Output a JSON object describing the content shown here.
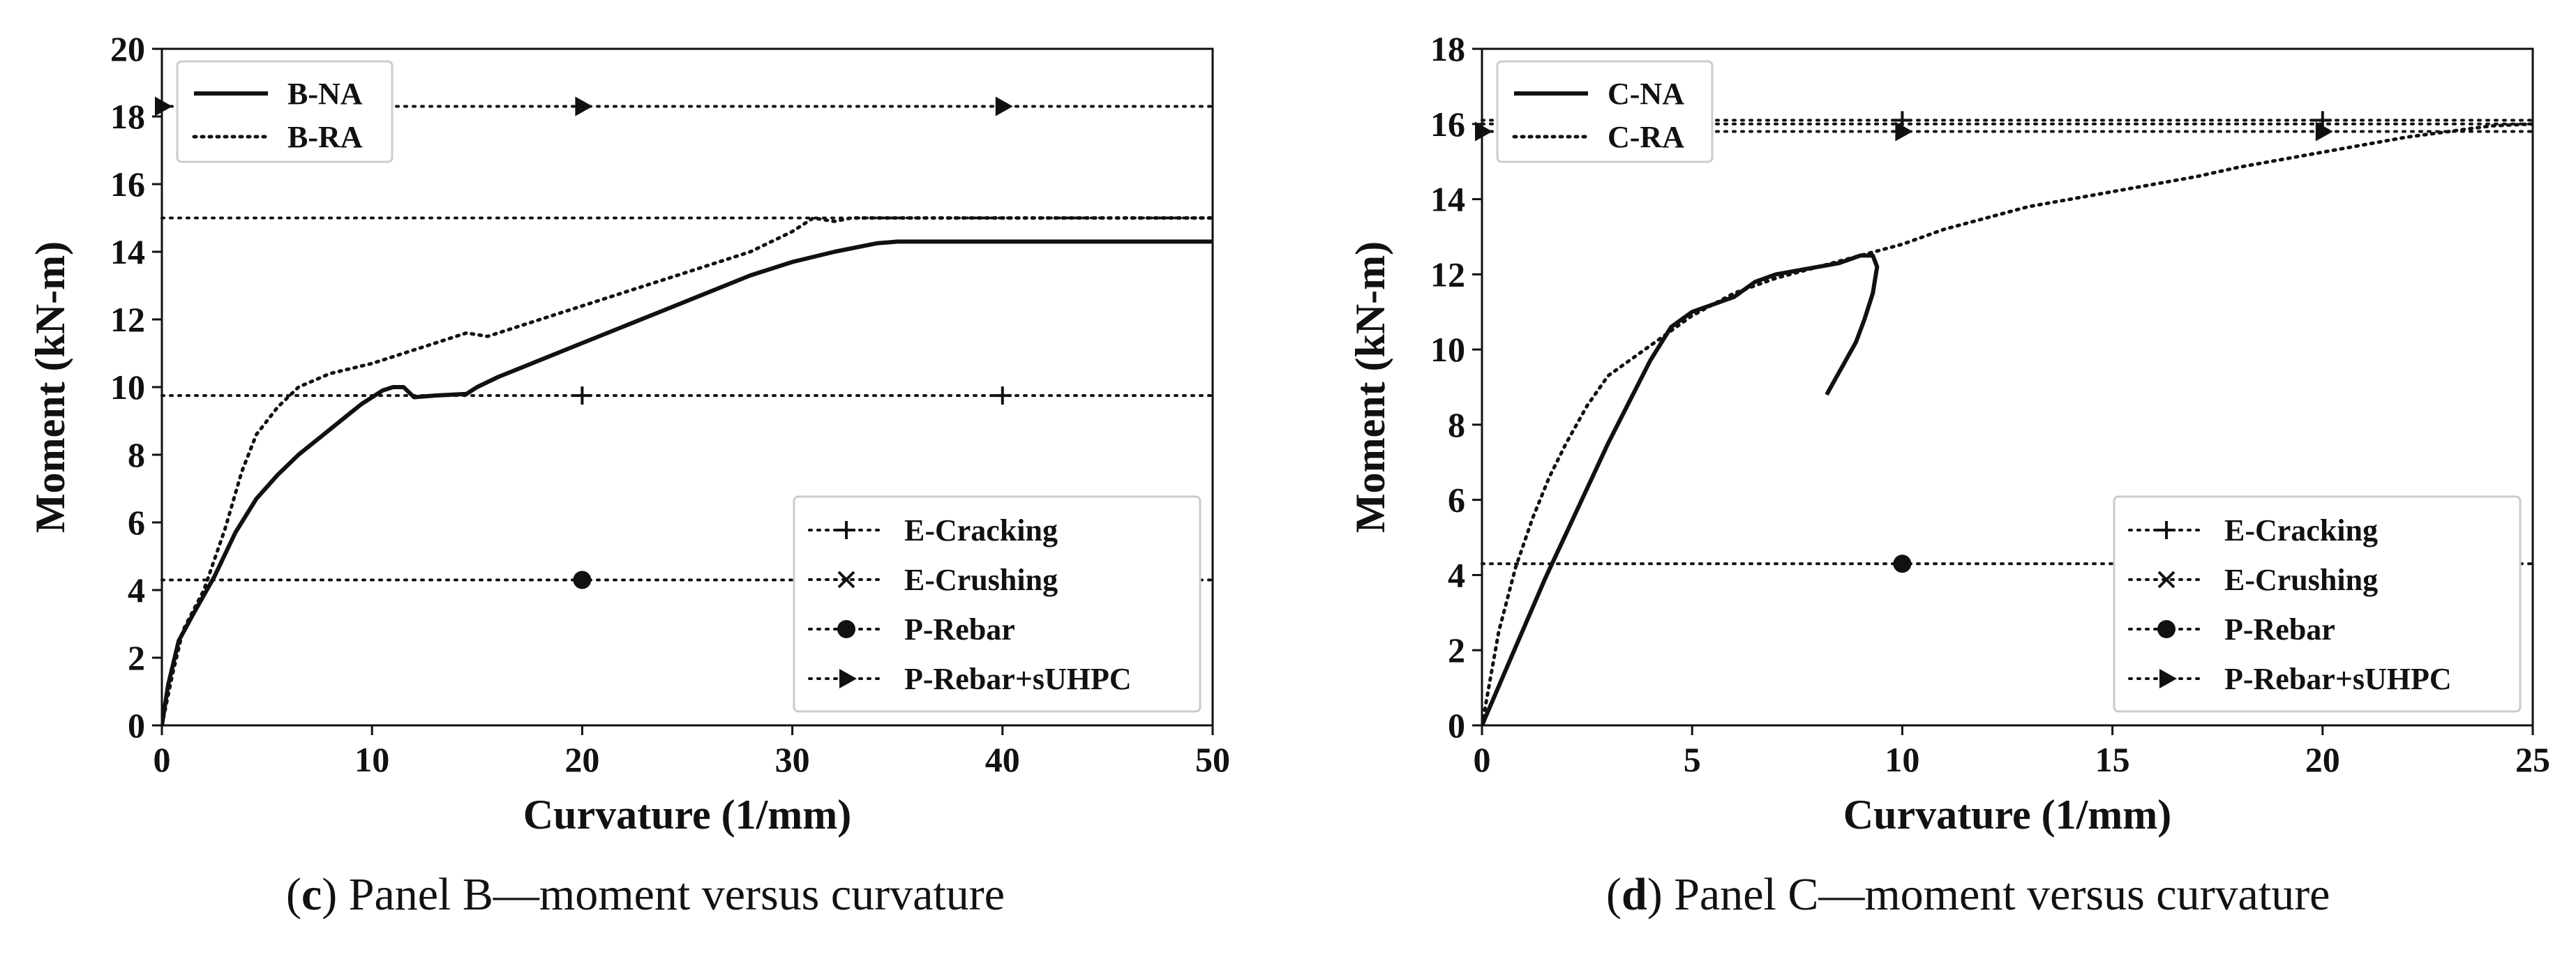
{
  "chart_data": [
    {
      "type": "line",
      "panel_letter": "c",
      "caption": "Panel B—moment versus curvature",
      "xlabel": "Curvature (1/mm)",
      "ylabel": "Moment (kN-m)",
      "xlim": [
        0,
        50
      ],
      "ylim": [
        0,
        20
      ],
      "xticks": [
        0,
        10,
        20,
        30,
        40,
        50
      ],
      "yticks": [
        0,
        2,
        4,
        6,
        8,
        10,
        12,
        14,
        16,
        18,
        20
      ],
      "legend_top": [
        "B-NA",
        "B-RA"
      ],
      "series": [
        {
          "name": "B-NA",
          "style": "solid",
          "x": [
            0,
            0.3,
            0.8,
            1.5,
            2.5,
            3.5,
            4.5,
            5.5,
            6.5,
            7.5,
            8.5,
            9.5,
            10.5,
            11.0,
            11.5,
            12.0,
            13.0,
            14.5,
            15.0,
            16.0,
            18.0,
            20.0,
            22.0,
            24.0,
            26.0,
            28.0,
            30.0,
            32.0,
            34.0,
            35.0,
            50.0
          ],
          "y": [
            0,
            1.2,
            2.5,
            3.3,
            4.4,
            5.7,
            6.7,
            7.4,
            8.0,
            8.5,
            9.0,
            9.5,
            9.9,
            10.0,
            10.0,
            9.7,
            9.75,
            9.8,
            10.0,
            10.3,
            10.8,
            11.3,
            11.8,
            12.3,
            12.8,
            13.3,
            13.7,
            14.0,
            14.25,
            14.3,
            14.3
          ]
        },
        {
          "name": "B-RA",
          "style": "dotted",
          "x": [
            0,
            0.5,
            1.0,
            2.0,
            3.0,
            3.8,
            4.5,
            5.5,
            6.5,
            8.0,
            10.0,
            12.0,
            14.5,
            15.5,
            18.0,
            20.0,
            22.0,
            24.0,
            26.0,
            28.0,
            30.0,
            31.0,
            32.0,
            32.8,
            50.0
          ],
          "y": [
            0,
            1.5,
            2.8,
            4.0,
            5.8,
            7.5,
            8.6,
            9.4,
            10.0,
            10.4,
            10.7,
            11.1,
            11.6,
            11.5,
            12.0,
            12.4,
            12.8,
            13.2,
            13.6,
            14.0,
            14.6,
            15.0,
            14.9,
            15.0,
            15.0
          ]
        }
      ],
      "reference_lines": [
        {
          "name": "E-Cracking",
          "y": 9.75,
          "marker_x": [
            20,
            40
          ]
        },
        {
          "name": "E-Crushing",
          "y": 15.0,
          "marker_x": []
        },
        {
          "name": "P-Rebar",
          "y": 4.3,
          "marker_x": [
            20
          ]
        },
        {
          "name": "P-Rebar+sUHPC",
          "y": 18.3,
          "marker_x": [
            0,
            20,
            40
          ]
        }
      ],
      "legend_bottom": [
        "E-Cracking",
        "E-Crushing",
        "P-Rebar",
        "P-Rebar+sUHPC"
      ]
    },
    {
      "type": "line",
      "panel_letter": "d",
      "caption": "Panel C—moment versus curvature",
      "xlabel": "Curvature (1/mm)",
      "ylabel": "Moment (kN-m)",
      "xlim": [
        0,
        25
      ],
      "ylim": [
        0,
        18
      ],
      "xticks": [
        0,
        5,
        10,
        15,
        20,
        25
      ],
      "yticks": [
        0,
        2,
        4,
        6,
        8,
        10,
        12,
        14,
        16,
        18
      ],
      "legend_top": [
        "C-NA",
        "C-RA"
      ],
      "series": [
        {
          "name": "C-NA",
          "style": "solid",
          "x": [
            0,
            0.5,
            1.0,
            1.5,
            2.0,
            2.5,
            3.0,
            3.5,
            4.0,
            4.5,
            5.0,
            5.5,
            6.0,
            6.5,
            7.0,
            7.5,
            8.0,
            8.5,
            9.0,
            9.3,
            9.4,
            9.3,
            9.1,
            8.9,
            8.6,
            8.4,
            8.2
          ],
          "y": [
            0,
            1.3,
            2.6,
            3.9,
            5.1,
            6.3,
            7.5,
            8.6,
            9.7,
            10.6,
            11.0,
            11.2,
            11.4,
            11.8,
            12.0,
            12.1,
            12.2,
            12.3,
            12.5,
            12.5,
            12.2,
            11.5,
            10.8,
            10.2,
            9.6,
            9.2,
            8.8
          ]
        },
        {
          "name": "C-RA",
          "style": "dotted",
          "x": [
            0,
            0.4,
            0.8,
            1.2,
            1.6,
            2.0,
            2.5,
            3.0,
            4.0,
            5.0,
            6.0,
            7.0,
            8.0,
            9.0,
            10.0,
            11.0,
            12.0,
            13.0,
            14.0,
            15.0,
            16.0,
            17.0,
            18.0,
            19.0,
            20.0,
            21.0,
            22.0,
            23.0,
            24.0,
            25.0
          ],
          "y": [
            0,
            2.5,
            4.2,
            5.5,
            6.6,
            7.5,
            8.5,
            9.3,
            10.1,
            10.9,
            11.5,
            11.9,
            12.2,
            12.5,
            12.8,
            13.2,
            13.5,
            13.8,
            14.0,
            14.2,
            14.4,
            14.6,
            14.85,
            15.05,
            15.25,
            15.45,
            15.65,
            15.8,
            15.95,
            16.0
          ]
        }
      ],
      "reference_lines": [
        {
          "name": "E-Cracking",
          "y": 16.1,
          "marker_x": [
            10,
            20
          ]
        },
        {
          "name": "E-Crushing",
          "y": 16.0,
          "marker_x": []
        },
        {
          "name": "P-Rebar",
          "y": 4.3,
          "marker_x": [
            10
          ]
        },
        {
          "name": "P-Rebar+sUHPC",
          "y": 15.8,
          "marker_x": [
            0,
            10,
            20
          ]
        }
      ],
      "legend_bottom": [
        "E-Cracking",
        "E-Crushing",
        "P-Rebar",
        "P-Rebar+sUHPC"
      ]
    }
  ]
}
